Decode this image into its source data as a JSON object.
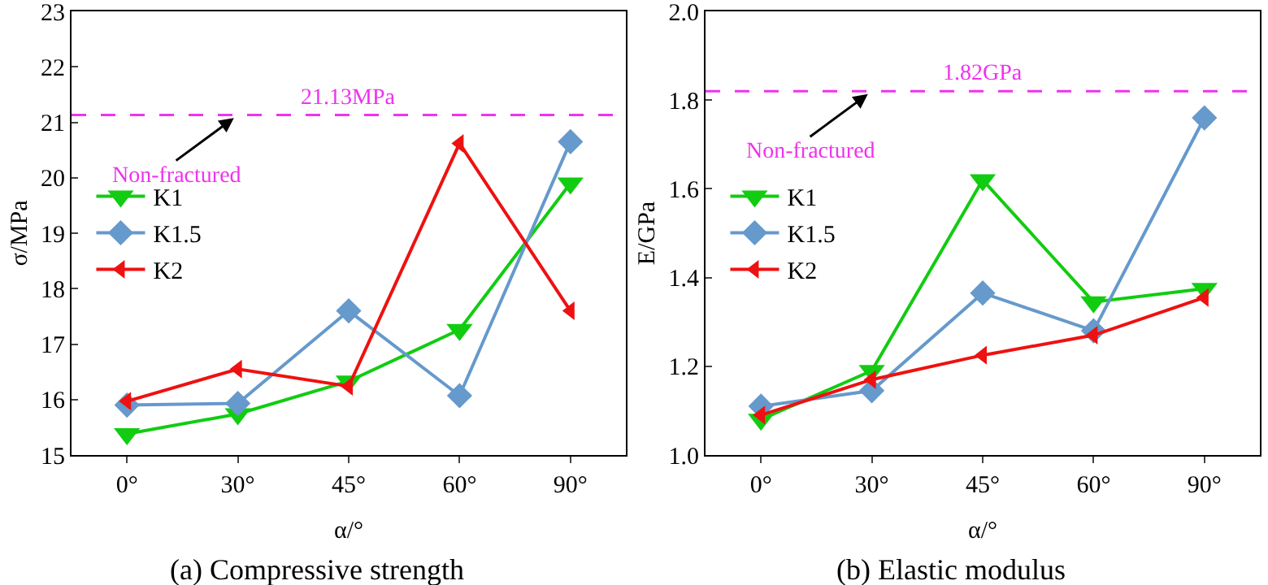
{
  "chart_data": [
    {
      "type": "line",
      "title": "(a) Compressive strength",
      "xlabel": "α/°",
      "ylabel": "σ/MPa",
      "categories": [
        "0°",
        "30°",
        "45°",
        "60°",
        "90°"
      ],
      "ylim": [
        15,
        23
      ],
      "yticks": [
        15,
        16,
        17,
        18,
        19,
        20,
        21,
        22,
        23
      ],
      "grid": false,
      "legend": "left",
      "line_style": "solid",
      "series": [
        {
          "name": "K1",
          "color": "#11cc11",
          "marker": "triangle",
          "values": [
            15.38,
            15.74,
            16.33,
            17.26,
            19.9
          ]
        },
        {
          "name": "K1.5",
          "color": "#6699cc",
          "marker": "diamond",
          "values": [
            15.9,
            15.93,
            17.6,
            16.07,
            20.65
          ]
        },
        {
          "name": "K2",
          "color": "#ee1111",
          "marker": "triangle",
          "values": [
            15.97,
            16.55,
            16.24,
            20.62,
            17.6
          ]
        }
      ],
      "ref_lines": [
        {
          "axis": "y",
          "value": 21.13,
          "label": "21.13MPa",
          "color": "#ee33ee",
          "line_style": "dashed"
        }
      ],
      "annotations": [
        {
          "text": "Non-fractured",
          "x": "30°",
          "y": 21.13
        }
      ]
    },
    {
      "type": "line",
      "title": "(b) Elastic modulus",
      "xlabel": "α/°",
      "ylabel": "E/GPa",
      "categories": [
        "0°",
        "30°",
        "45°",
        "60°",
        "90°"
      ],
      "ylim": [
        1.0,
        2.0
      ],
      "yticks": [
        {
          "value": 1.0,
          "label": "1.0"
        },
        1.2,
        1.4,
        1.6,
        1.8,
        {
          "value": 2.0,
          "label": "2.0"
        }
      ],
      "grid": false,
      "legend": "left",
      "line_style": "solid",
      "series": [
        {
          "name": "K1",
          "color": "#11cc11",
          "marker": "triangle",
          "values": [
            1.08,
            1.19,
            1.62,
            1.345,
            1.375
          ]
        },
        {
          "name": "K1.5",
          "color": "#6699cc",
          "marker": "diamond",
          "values": [
            1.11,
            1.145,
            1.365,
            1.28,
            1.76
          ]
        },
        {
          "name": "K2",
          "color": "#ee1111",
          "marker": "triangle",
          "values": [
            1.09,
            1.17,
            1.225,
            1.27,
            1.355
          ]
        }
      ],
      "ref_lines": [
        {
          "axis": "y",
          "value": 1.82,
          "label": "1.82GPa",
          "color": "#ee33ee",
          "line_style": "dashed"
        }
      ],
      "annotations": [
        {
          "text": "Non-fractured",
          "x": "30°",
          "y": 1.82
        }
      ]
    }
  ]
}
